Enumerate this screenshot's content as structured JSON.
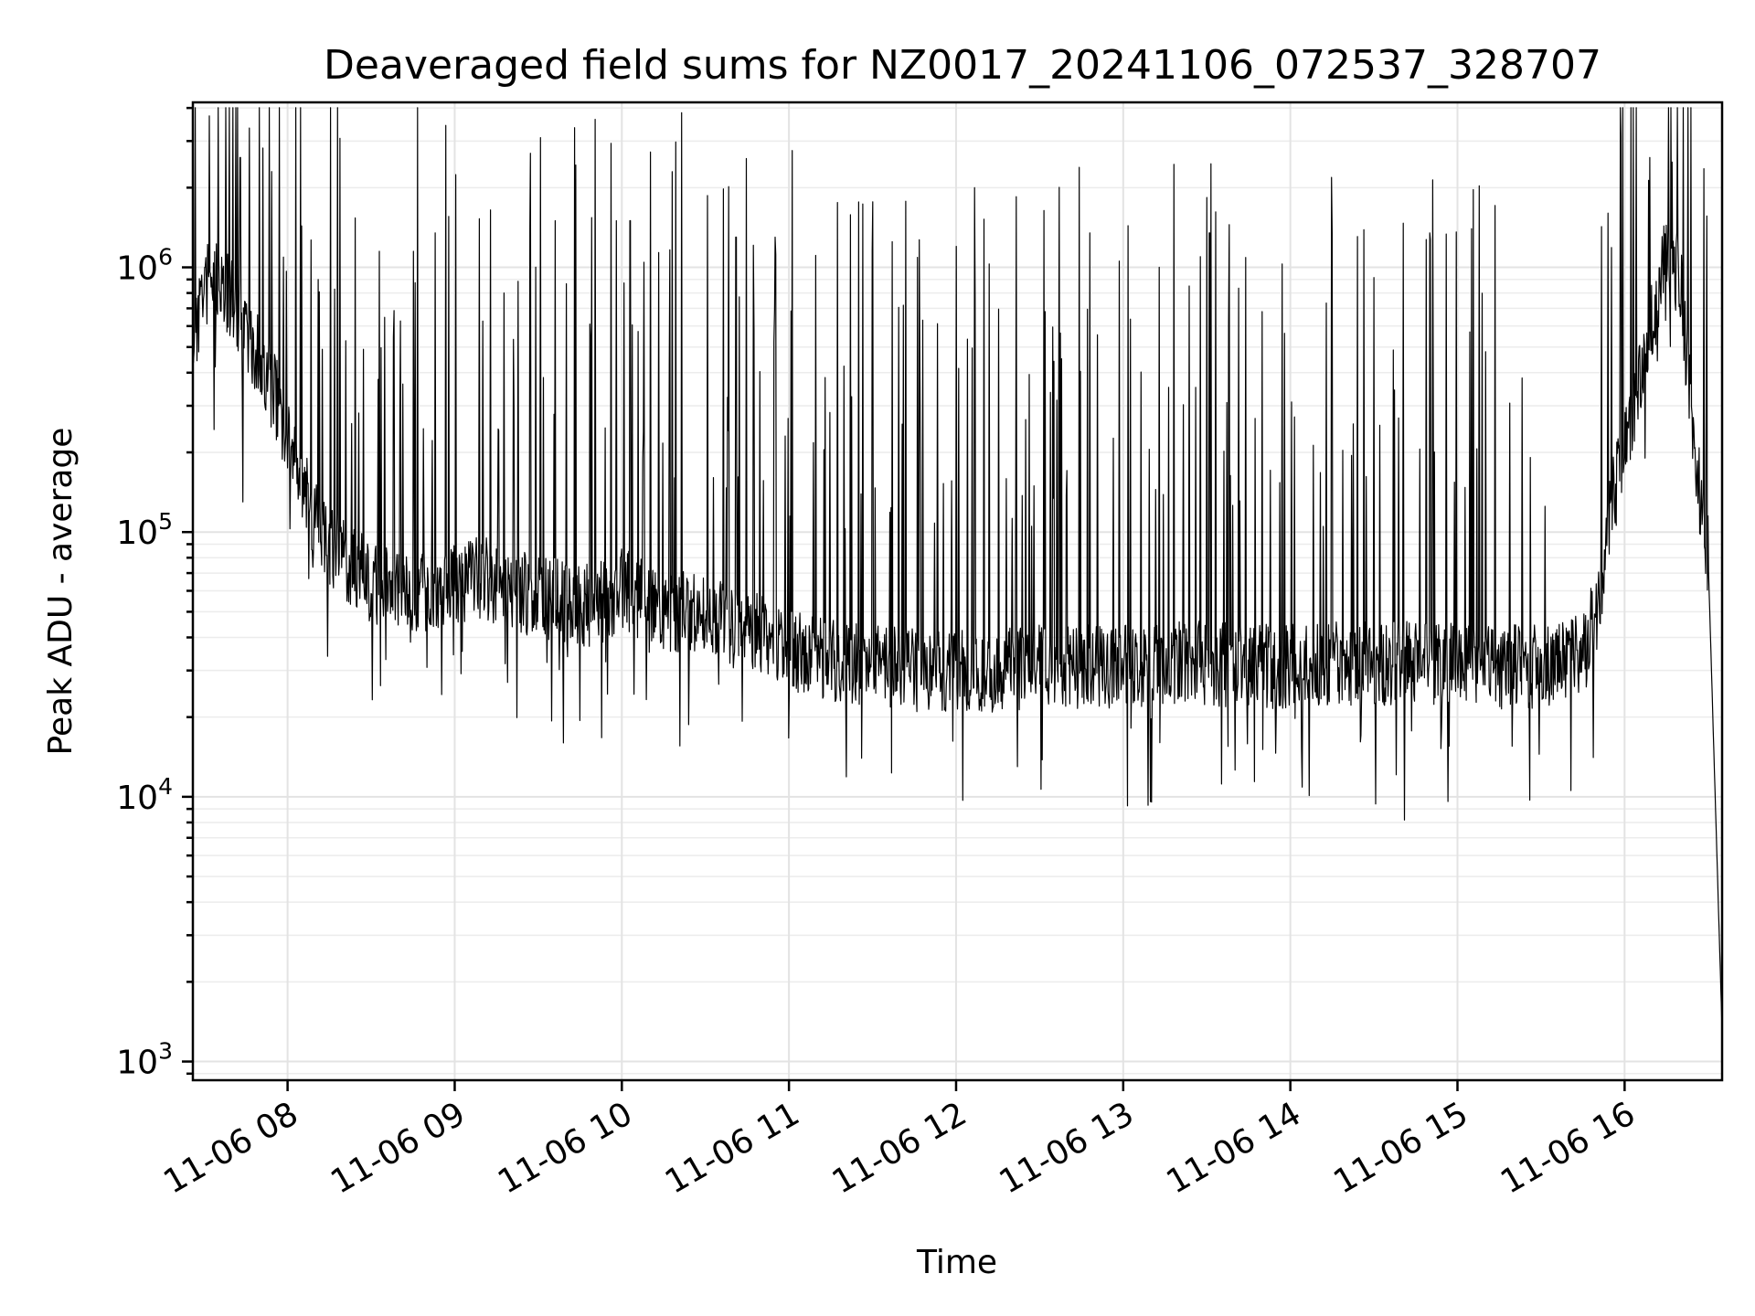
{
  "chart_data": {
    "type": "line",
    "title": "Deaveraged field sums for NZ0017_20241106_072537_328707",
    "xlabel": "Time",
    "ylabel": "Peak ADU - average",
    "yscale": "log",
    "xlim": [
      "2024-11-06 07:26",
      "2024-11-06 16:35"
    ],
    "ylim": [
      850,
      4200000
    ],
    "grid": true,
    "x_tick_labels": [
      {
        "label": "11-06 08",
        "time": "2024-11-06 08:00"
      },
      {
        "label": "11-06 09",
        "time": "2024-11-06 09:00"
      },
      {
        "label": "11-06 10",
        "time": "2024-11-06 10:00"
      },
      {
        "label": "11-06 11",
        "time": "2024-11-06 11:00"
      },
      {
        "label": "11-06 12",
        "time": "2024-11-06 12:00"
      },
      {
        "label": "11-06 13",
        "time": "2024-11-06 13:00"
      },
      {
        "label": "11-06 14",
        "time": "2024-11-06 14:00"
      },
      {
        "label": "11-06 15",
        "time": "2024-11-06 15:00"
      },
      {
        "label": "11-06 16",
        "time": "2024-11-06 16:00"
      }
    ],
    "y_tick_labels": [
      {
        "base": "10",
        "exp": "3",
        "value": 1000
      },
      {
        "base": "10",
        "exp": "4",
        "value": 10000
      },
      {
        "base": "10",
        "exp": "5",
        "value": 100000
      },
      {
        "base": "10",
        "exp": "6",
        "value": 1000000
      }
    ],
    "series": [
      {
        "color": "#000000",
        "points": [
          [
            "2024-11-06 07:26",
            520000
          ],
          [
            "2024-11-06 07:30",
            850000
          ],
          [
            "2024-11-06 07:35",
            900000
          ],
          [
            "2024-11-06 07:40",
            750000
          ],
          [
            "2024-11-06 07:45",
            600000
          ],
          [
            "2024-11-06 07:50",
            450000
          ],
          [
            "2024-11-06 07:55",
            350000
          ],
          [
            "2024-11-06 08:00",
            220000
          ],
          [
            "2024-11-06 08:05",
            160000
          ],
          [
            "2024-11-06 08:10",
            110000
          ],
          [
            "2024-11-06 08:15",
            90000
          ],
          [
            "2024-11-06 08:20",
            80000
          ],
          [
            "2024-11-06 08:25",
            70000
          ],
          [
            "2024-11-06 08:30",
            65000
          ],
          [
            "2024-11-06 08:40",
            62000
          ],
          [
            "2024-11-06 08:50",
            60000
          ],
          [
            "2024-11-06 09:00",
            65000
          ],
          [
            "2024-11-06 09:10",
            68000
          ],
          [
            "2024-11-06 09:20",
            62000
          ],
          [
            "2024-11-06 09:30",
            56000
          ],
          [
            "2024-11-06 09:40",
            55000
          ],
          [
            "2024-11-06 09:50",
            52000
          ],
          [
            "2024-11-06 10:00",
            60000
          ],
          [
            "2024-11-06 10:10",
            55000
          ],
          [
            "2024-11-06 10:20",
            50000
          ],
          [
            "2024-11-06 10:30",
            48000
          ],
          [
            "2024-11-06 10:40",
            44000
          ],
          [
            "2024-11-06 10:50",
            42000
          ],
          [
            "2024-11-06 11:00",
            36000
          ],
          [
            "2024-11-06 11:15",
            33000
          ],
          [
            "2024-11-06 11:30",
            31000
          ],
          [
            "2024-11-06 11:45",
            30000
          ],
          [
            "2024-11-06 12:00",
            30000
          ],
          [
            "2024-11-06 12:15",
            30000
          ],
          [
            "2024-11-06 12:30",
            31000
          ],
          [
            "2024-11-06 12:45",
            31000
          ],
          [
            "2024-11-06 13:00",
            31000
          ],
          [
            "2024-11-06 13:15",
            32000
          ],
          [
            "2024-11-06 13:30",
            32000
          ],
          [
            "2024-11-06 13:45",
            31000
          ],
          [
            "2024-11-06 14:00",
            31000
          ],
          [
            "2024-11-06 14:15",
            32000
          ],
          [
            "2024-11-06 14:30",
            32000
          ],
          [
            "2024-11-06 14:45",
            32000
          ],
          [
            "2024-11-06 15:00",
            32000
          ],
          [
            "2024-11-06 15:15",
            31000
          ],
          [
            "2024-11-06 15:30",
            31000
          ],
          [
            "2024-11-06 15:45",
            34000
          ],
          [
            "2024-11-06 15:50",
            50000
          ],
          [
            "2024-11-06 15:55",
            120000
          ],
          [
            "2024-11-06 16:00",
            220000
          ],
          [
            "2024-11-06 16:05",
            350000
          ],
          [
            "2024-11-06 16:10",
            650000
          ],
          [
            "2024-11-06 16:15",
            1100000
          ],
          [
            "2024-11-06 16:20",
            900000
          ],
          [
            "2024-11-06 16:25",
            200000
          ],
          [
            "2024-11-06 16:30",
            80000
          ],
          [
            "2024-11-06 16:35",
            1300
          ]
        ],
        "spikes": [
          [
            "2024-11-06 07:43",
            2600000
          ],
          [
            "2024-11-06 07:44",
            130000
          ],
          [
            "2024-11-06 08:11",
            900000
          ],
          [
            "2024-11-06 08:33",
            1150000
          ],
          [
            "2024-11-06 08:53",
            1350000
          ],
          [
            "2024-11-06 09:36",
            1500000
          ],
          [
            "2024-11-06 09:58",
            1500000
          ],
          [
            "2024-11-06 10:03",
            1500000
          ],
          [
            "2024-11-06 10:41",
            1300000
          ],
          [
            "2024-11-06 10:55",
            1300000
          ],
          [
            "2024-11-06 11:37",
            1250000
          ],
          [
            "2024-11-06 12:00",
            1200000
          ],
          [
            "2024-11-06 12:48",
            1350000
          ],
          [
            "2024-11-06 13:31",
            1350000
          ],
          [
            "2024-11-06 13:38",
            1450000
          ],
          [
            "2024-11-06 14:15",
            1350000
          ],
          [
            "2024-11-06 14:50",
            1350000
          ],
          [
            "2024-11-06 15:05",
            1400000
          ],
          [
            "2024-11-06 16:09",
            2600000
          ],
          [
            "2024-11-06 16:17",
            2500000
          ],
          [
            "2024-11-06 12:22",
            13000
          ]
        ]
      }
    ]
  }
}
